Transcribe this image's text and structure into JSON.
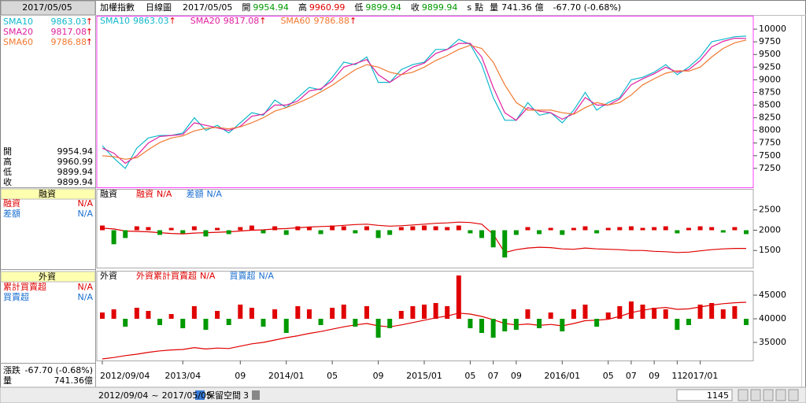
{
  "header": {
    "title": "加權指數",
    "period": "日線圖",
    "date": "2017/05/05",
    "quote": [
      {
        "label": "開",
        "value": "9954.94",
        "color": "#009900"
      },
      {
        "label": "高",
        "value": "9960.99",
        "color": "#e00000"
      },
      {
        "label": "低",
        "value": "9899.94",
        "color": "#009900"
      },
      {
        "label": "收",
        "value": "9899.94",
        "color": "#009900"
      }
    ],
    "s": "s",
    "unit": "點",
    "volume_label": "量",
    "volume": "741.36",
    "volume_unit": "億",
    "change_label": "漲跌",
    "change": "-67.70 (-0.68%)"
  },
  "sidebar": {
    "foreign_cum_label": "累計買賣超"
  },
  "status": {
    "range_sep": "~",
    "space_label": "保留空間",
    "space_value": "3",
    "count": "1145"
  },
  "chart_data": [
    {
      "type": "line",
      "ylim": [
        6875,
        10250
      ],
      "yticks": [
        7250,
        7500,
        7750,
        8000,
        8250,
        8500,
        8750,
        9000,
        9250,
        9500,
        9750,
        10000
      ],
      "series": [
        {
          "name": "SMA10",
          "color": "#10b8cc",
          "last": "9863.03",
          "arrow": "↑",
          "values": [
            7700,
            7450,
            7250,
            7650,
            7850,
            7900,
            7900,
            7950,
            8250,
            8000,
            8100,
            7950,
            8150,
            8350,
            8300,
            8600,
            8450,
            8650,
            8850,
            8800,
            9050,
            9350,
            9300,
            9450,
            8950,
            8950,
            9200,
            9300,
            9350,
            9600,
            9600,
            9800,
            9700,
            9300,
            8650,
            8200,
            8200,
            8550,
            8300,
            8350,
            8150,
            8400,
            8750,
            8400,
            8550,
            8650,
            9000,
            9050,
            9150,
            9300,
            9100,
            9250,
            9450,
            9750,
            9800,
            9850,
            9863.03
          ]
        },
        {
          "name": "SMA20",
          "color": "#e0209f",
          "last": "9817.08",
          "arrow": "↑",
          "values": [
            7650,
            7550,
            7350,
            7500,
            7750,
            7880,
            7900,
            7920,
            8150,
            8100,
            8050,
            8000,
            8080,
            8280,
            8320,
            8500,
            8500,
            8580,
            8780,
            8820,
            8980,
            9250,
            9320,
            9400,
            9100,
            8950,
            9100,
            9250,
            9330,
            9520,
            9600,
            9720,
            9720,
            9450,
            8850,
            8350,
            8200,
            8450,
            8380,
            8350,
            8220,
            8330,
            8650,
            8500,
            8500,
            8620,
            8900,
            9020,
            9120,
            9250,
            9150,
            9200,
            9380,
            9650,
            9760,
            9820,
            9817.08
          ]
        },
        {
          "name": "SMA60",
          "color": "#f07830",
          "last": "9786.88",
          "arrow": "↑",
          "values": [
            7500,
            7480,
            7430,
            7460,
            7620,
            7760,
            7850,
            7890,
            7990,
            8040,
            8060,
            8030,
            8070,
            8150,
            8250,
            8380,
            8450,
            8540,
            8640,
            8760,
            8890,
            9050,
            9200,
            9300,
            9250,
            9150,
            9100,
            9150,
            9250,
            9380,
            9480,
            9600,
            9680,
            9620,
            9350,
            8900,
            8550,
            8400,
            8400,
            8400,
            8350,
            8320,
            8450,
            8550,
            8500,
            8550,
            8700,
            8900,
            9020,
            9130,
            9180,
            9170,
            9250,
            9450,
            9620,
            9730,
            9786.88
          ]
        }
      ]
    },
    {
      "type": "line",
      "title": "融資",
      "ylim": [
        1077,
        3000
      ],
      "yticks": [
        1500,
        2000,
        2500
      ],
      "y2lim": [
        -48,
        52
      ],
      "up_color": "#e00000",
      "down_color": "#009900",
      "series": [
        {
          "name": "融資",
          "color": "#e00000",
          "status": "N/A",
          "values": [
            2050,
            2030,
            1980,
            1970,
            1960,
            1940,
            1920,
            1910,
            1930,
            1940,
            1950,
            1960,
            1980,
            2000,
            2010,
            2030,
            2040,
            2060,
            2080,
            2090,
            2100,
            2120,
            2140,
            2150,
            2120,
            2100,
            2110,
            2130,
            2150,
            2170,
            2180,
            2200,
            2190,
            2150,
            1900,
            1450,
            1520,
            1560,
            1580,
            1570,
            1540,
            1530,
            1560,
            1540,
            1530,
            1520,
            1500,
            1500,
            1480,
            1470,
            1450,
            1460,
            1490,
            1520,
            1540,
            1550,
            1550
          ]
        },
        {
          "name": "差額",
          "color": "#1a6fd0",
          "status": "N/A",
          "type": "bar",
          "axis": "y2",
          "values": [
            6,
            -18,
            -10,
            5,
            4,
            -6,
            3,
            -4,
            5,
            -8,
            3,
            -5,
            4,
            6,
            -4,
            5,
            -6,
            5,
            4,
            -5,
            6,
            5,
            -4,
            5,
            -10,
            -6,
            4,
            5,
            6,
            5,
            4,
            6,
            -4,
            -10,
            -22,
            -35,
            -6,
            4,
            -5,
            3,
            -6,
            3,
            5,
            -4,
            3,
            4,
            5,
            3,
            4,
            5,
            -4,
            3,
            5,
            4,
            -3,
            4,
            -5
          ]
        }
      ]
    },
    {
      "type": "line",
      "title": "外資",
      "ylim": [
        31170,
        50000
      ],
      "yticks": [
        35000,
        40000,
        45000
      ],
      "y2lim": [
        -265,
        300
      ],
      "up_color": "#e00000",
      "down_color": "#009900",
      "categories": [
        "2012/09/04",
        null,
        null,
        null,
        null,
        null,
        null,
        "2013/04",
        null,
        null,
        null,
        null,
        "09",
        null,
        null,
        null,
        "2014/01",
        null,
        null,
        null,
        "05",
        null,
        null,
        null,
        "09",
        null,
        null,
        null,
        "2015/01",
        null,
        null,
        null,
        "05",
        null,
        "07",
        null,
        "09",
        null,
        null,
        null,
        "2016/01",
        null,
        null,
        null,
        "05",
        null,
        "07",
        null,
        "09",
        null,
        "11",
        null,
        "2017/01",
        null,
        null,
        null,
        null
      ],
      "series": [
        {
          "name": "外資累計買賣超",
          "color": "#e00000",
          "status": "N/A",
          "values": [
            31500,
            31800,
            32200,
            32500,
            32900,
            33200,
            33400,
            33500,
            33900,
            33600,
            33800,
            33700,
            34200,
            34700,
            35000,
            35500,
            36000,
            36400,
            36900,
            37300,
            37800,
            38300,
            38700,
            39000,
            38500,
            38300,
            38700,
            39200,
            39700,
            40200,
            40600,
            41200,
            41000,
            40500,
            39800,
            39000,
            38700,
            38900,
            38600,
            38800,
            38500,
            39000,
            39600,
            39700,
            39900,
            40500,
            41300,
            41800,
            42200,
            42400,
            42000,
            42100,
            42500,
            42900,
            43200,
            43400,
            43500
          ]
        },
        {
          "name": "買賣超",
          "color": "#1a6fd0",
          "status": "N/A",
          "type": "bar",
          "axis": "y2",
          "values": [
            40,
            60,
            -50,
            70,
            50,
            -40,
            30,
            -60,
            80,
            -70,
            50,
            -40,
            90,
            70,
            -50,
            60,
            -90,
            80,
            60,
            -40,
            70,
            90,
            -50,
            80,
            -120,
            -60,
            50,
            80,
            90,
            100,
            80,
            275,
            -60,
            -90,
            -120,
            -80,
            -70,
            60,
            -60,
            40,
            -80,
            60,
            90,
            -50,
            40,
            80,
            110,
            90,
            70,
            60,
            -70,
            -40,
            90,
            100,
            60,
            80,
            -40
          ]
        }
      ]
    }
  ]
}
